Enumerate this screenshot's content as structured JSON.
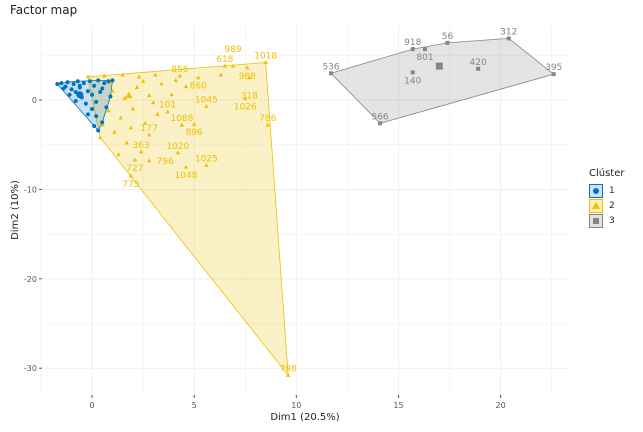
{
  "chart_data": {
    "type": "scatter",
    "title": "Factor map",
    "xlabel": "Dim1 (20.5%)",
    "ylabel": "Dim2 (10%)",
    "xlim": [
      -2.45,
      23.3
    ],
    "ylim": [
      -33,
      8.4
    ],
    "xticks": [
      0,
      5,
      10,
      15,
      20
    ],
    "yticks": [
      0,
      -10,
      -20,
      -30
    ],
    "grid": true,
    "legend": {
      "title": "Clúster",
      "placement": "right",
      "entries": [
        "1",
        "2",
        "3"
      ]
    },
    "series": [
      {
        "name": "1",
        "color": "#0073C2",
        "marker": "circle",
        "centroid": [
          -0.6,
          0.6
        ],
        "points": [
          {
            "x": -1.7,
            "y": 1.8
          },
          {
            "x": -1.5,
            "y": 1.9
          },
          {
            "x": -1.3,
            "y": 1.5
          },
          {
            "x": -1.2,
            "y": 2.0
          },
          {
            "x": -1.0,
            "y": 1.2
          },
          {
            "x": -0.9,
            "y": 1.8
          },
          {
            "x": -0.8,
            "y": 0.9
          },
          {
            "x": -0.7,
            "y": 2.1
          },
          {
            "x": -0.6,
            "y": 1.4
          },
          {
            "x": -0.5,
            "y": 0.3
          },
          {
            "x": -0.4,
            "y": 1.9
          },
          {
            "x": -0.3,
            "y": -0.4
          },
          {
            "x": -0.2,
            "y": 1.0
          },
          {
            "x": -0.1,
            "y": 2.1
          },
          {
            "x": 0.0,
            "y": -1.0
          },
          {
            "x": 0.0,
            "y": 0.6
          },
          {
            "x": 0.1,
            "y": 1.6
          },
          {
            "x": 0.2,
            "y": -1.8
          },
          {
            "x": 0.2,
            "y": -0.2
          },
          {
            "x": 0.3,
            "y": 2.2
          },
          {
            "x": 0.3,
            "y": -3.4
          },
          {
            "x": 0.4,
            "y": 0.9
          },
          {
            "x": 0.5,
            "y": -2.5
          },
          {
            "x": 0.6,
            "y": 1.9
          },
          {
            "x": 0.7,
            "y": -0.8
          },
          {
            "x": 0.8,
            "y": 2.1
          },
          {
            "x": 0.9,
            "y": 0.4
          },
          {
            "x": 1.0,
            "y": 2.2
          },
          {
            "x": -1.1,
            "y": 0.6
          },
          {
            "x": -0.8,
            "y": -0.1
          },
          {
            "x": -0.6,
            "y": 1.6
          },
          {
            "x": -1.4,
            "y": 1.3
          },
          {
            "x": 0.1,
            "y": -2.9
          },
          {
            "x": -0.2,
            "y": -1.6
          },
          {
            "x": 0.5,
            "y": 1.3
          }
        ]
      },
      {
        "name": "2",
        "color": "#EFC000",
        "marker": "triangle",
        "centroid": [
          1.8,
          0.5
        ],
        "points": [
          {
            "x": 8.5,
            "y": 4.2,
            "label": "1018"
          },
          {
            "x": 7.6,
            "y": 3.6,
            "label": "988"
          },
          {
            "x": 6.5,
            "y": 3.8,
            "label": "618"
          },
          {
            "x": 6.9,
            "y": 3.8,
            "label": "989"
          },
          {
            "x": 7.7,
            "y": 2.5,
            "label": "318"
          },
          {
            "x": 7.5,
            "y": 0.2,
            "label": "1026"
          },
          {
            "x": 4.3,
            "y": 2.7,
            "label": "856"
          },
          {
            "x": 5.2,
            "y": 2.5,
            "label": "860"
          },
          {
            "x": 5.6,
            "y": -0.7,
            "label": "1045"
          },
          {
            "x": 3.7,
            "y": -1.3,
            "label": "101"
          },
          {
            "x": 8.6,
            "y": -2.8,
            "label": "786"
          },
          {
            "x": 4.4,
            "y": -2.8,
            "label": "1088"
          },
          {
            "x": 5.0,
            "y": -2.7,
            "label": "896"
          },
          {
            "x": 2.8,
            "y": -3.9,
            "label": "177"
          },
          {
            "x": 2.4,
            "y": -5.8,
            "label": "363"
          },
          {
            "x": 2.1,
            "y": -6.7,
            "label": "727"
          },
          {
            "x": 2.8,
            "y": -6.8,
            "label": "796"
          },
          {
            "x": 4.2,
            "y": -5.9,
            "label": "1020"
          },
          {
            "x": 4.6,
            "y": -7.5,
            "label": "1048"
          },
          {
            "x": 5.6,
            "y": -7.3,
            "label": "1025"
          },
          {
            "x": 1.9,
            "y": -8.5,
            "label": "775"
          },
          {
            "x": 9.6,
            "y": -30.8,
            "label": "798"
          },
          {
            "x": -0.2,
            "y": 2.6
          },
          {
            "x": 0.6,
            "y": 2.7
          },
          {
            "x": 1.5,
            "y": 2.8
          },
          {
            "x": 2.3,
            "y": 2.6
          },
          {
            "x": 3.1,
            "y": 2.8
          },
          {
            "x": 1.0,
            "y": 1.0
          },
          {
            "x": 1.6,
            "y": 0.2
          },
          {
            "x": 2.2,
            "y": 1.4
          },
          {
            "x": 2.8,
            "y": 0.5
          },
          {
            "x": 3.4,
            "y": 1.8
          },
          {
            "x": 0.8,
            "y": -1.2
          },
          {
            "x": 1.4,
            "y": -2.0
          },
          {
            "x": 2.0,
            "y": -1.0
          },
          {
            "x": 2.6,
            "y": -2.6
          },
          {
            "x": 0.4,
            "y": -4.2
          },
          {
            "x": 1.1,
            "y": -3.6
          },
          {
            "x": 1.7,
            "y": -4.8
          },
          {
            "x": 3.9,
            "y": 0.6
          },
          {
            "x": 4.6,
            "y": 1.5
          },
          {
            "x": 6.3,
            "y": 2.8
          },
          {
            "x": 3.2,
            "y": -1.6
          },
          {
            "x": 1.3,
            "y": -6.1
          },
          {
            "x": 0.9,
            "y": 1.9
          },
          {
            "x": 2.5,
            "y": 2.1
          },
          {
            "x": 4.1,
            "y": 2.2
          },
          {
            "x": 3.0,
            "y": -0.3
          },
          {
            "x": 1.9,
            "y": -3.1
          },
          {
            "x": 0.5,
            "y": -2.8
          }
        ]
      },
      {
        "name": "3",
        "color": "#868686",
        "marker": "square",
        "centroid": [
          17.0,
          3.8
        ],
        "points": [
          {
            "x": 11.7,
            "y": 3.0,
            "label": "536"
          },
          {
            "x": 14.1,
            "y": -2.6,
            "label": "566"
          },
          {
            "x": 15.7,
            "y": 5.7,
            "label": "918"
          },
          {
            "x": 16.3,
            "y": 5.7,
            "label": "801"
          },
          {
            "x": 17.4,
            "y": 6.4,
            "label": "56"
          },
          {
            "x": 20.4,
            "y": 6.9,
            "label": "312"
          },
          {
            "x": 22.6,
            "y": 2.9,
            "label": "395"
          },
          {
            "x": 15.7,
            "y": 3.1,
            "label": "140"
          },
          {
            "x": 18.9,
            "y": 3.5,
            "label": "420"
          }
        ]
      }
    ]
  }
}
